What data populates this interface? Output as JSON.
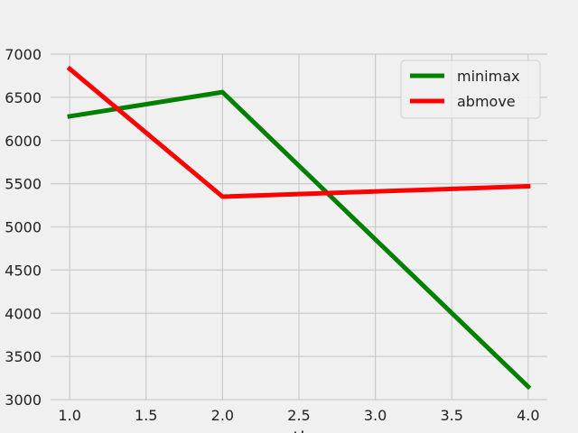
{
  "chart_data": {
    "type": "line",
    "x": [
      1.0,
      2.0,
      4.0
    ],
    "series": [
      {
        "name": "minimax",
        "color": "#008000",
        "values": [
          6280,
          6560,
          3150
        ]
      },
      {
        "name": "abmove",
        "color": "#ff0000",
        "values": [
          6830,
          5350,
          5470
        ]
      }
    ],
    "xlim": [
      0.875,
      4.125
    ],
    "ylim": [
      3000,
      7000
    ],
    "x_ticks": [
      "1.0",
      "1.5",
      "2.0",
      "2.5",
      "3.0",
      "3.5",
      "4.0"
    ],
    "y_ticks": [
      "3000",
      "3500",
      "4000",
      "4500",
      "5000",
      "5500",
      "6000",
      "6500",
      "7000"
    ],
    "xlabel": "ti",
    "ylabel": "",
    "title": "",
    "grid": true,
    "legend_position": "top-right",
    "background_color": "#f0f0f0",
    "grid_color": "#cbcbcb"
  }
}
